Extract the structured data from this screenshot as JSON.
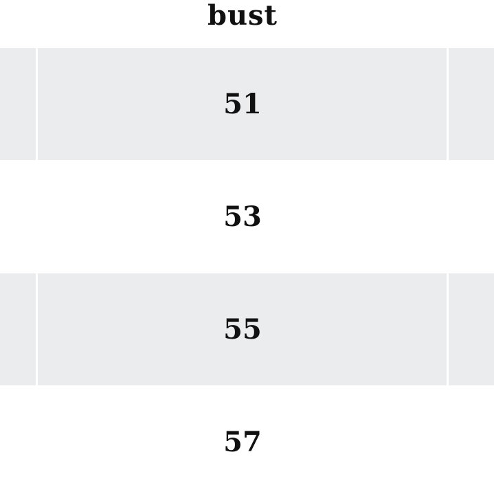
{
  "table": {
    "header": "bust",
    "rows": [
      "51",
      "53",
      "55",
      "57"
    ],
    "stripe_color": "#ebeced"
  }
}
